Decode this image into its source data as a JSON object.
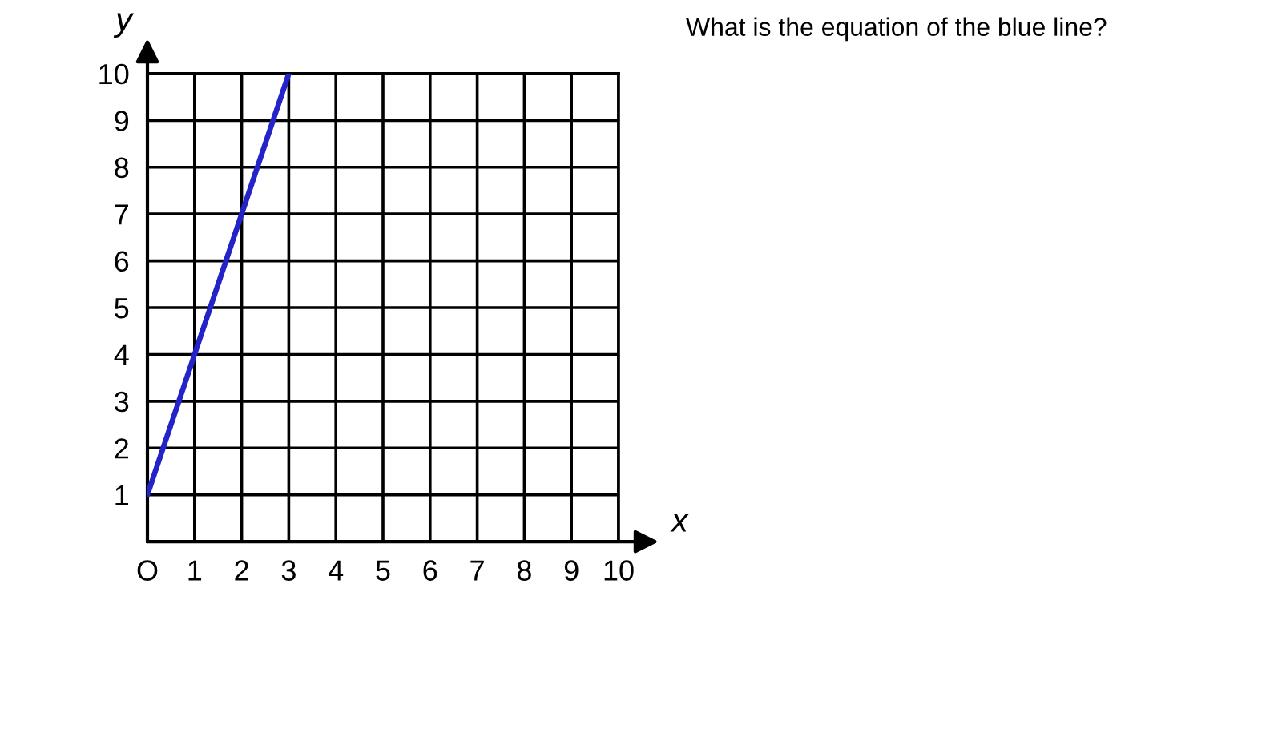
{
  "chart_data": {
    "type": "line",
    "xlabel": "x",
    "ylabel": "y",
    "annotations": [
      "What is the equation of the blue line?"
    ],
    "x": [
      0,
      1,
      2,
      3
    ],
    "series": [
      {
        "color": "#2323c8",
        "values": [
          1,
          4,
          7,
          10
        ]
      }
    ],
    "xlim": [
      0,
      10
    ],
    "ylim": [
      0,
      10
    ],
    "xticks": [
      {
        "value": 0,
        "label": "O"
      },
      1,
      2,
      3,
      4,
      5,
      6,
      7,
      8,
      9,
      10
    ],
    "yticks": [
      1,
      2,
      3,
      4,
      5,
      6,
      7,
      8,
      9,
      10
    ],
    "grid": true,
    "line_style": "solid",
    "marker": "none"
  }
}
